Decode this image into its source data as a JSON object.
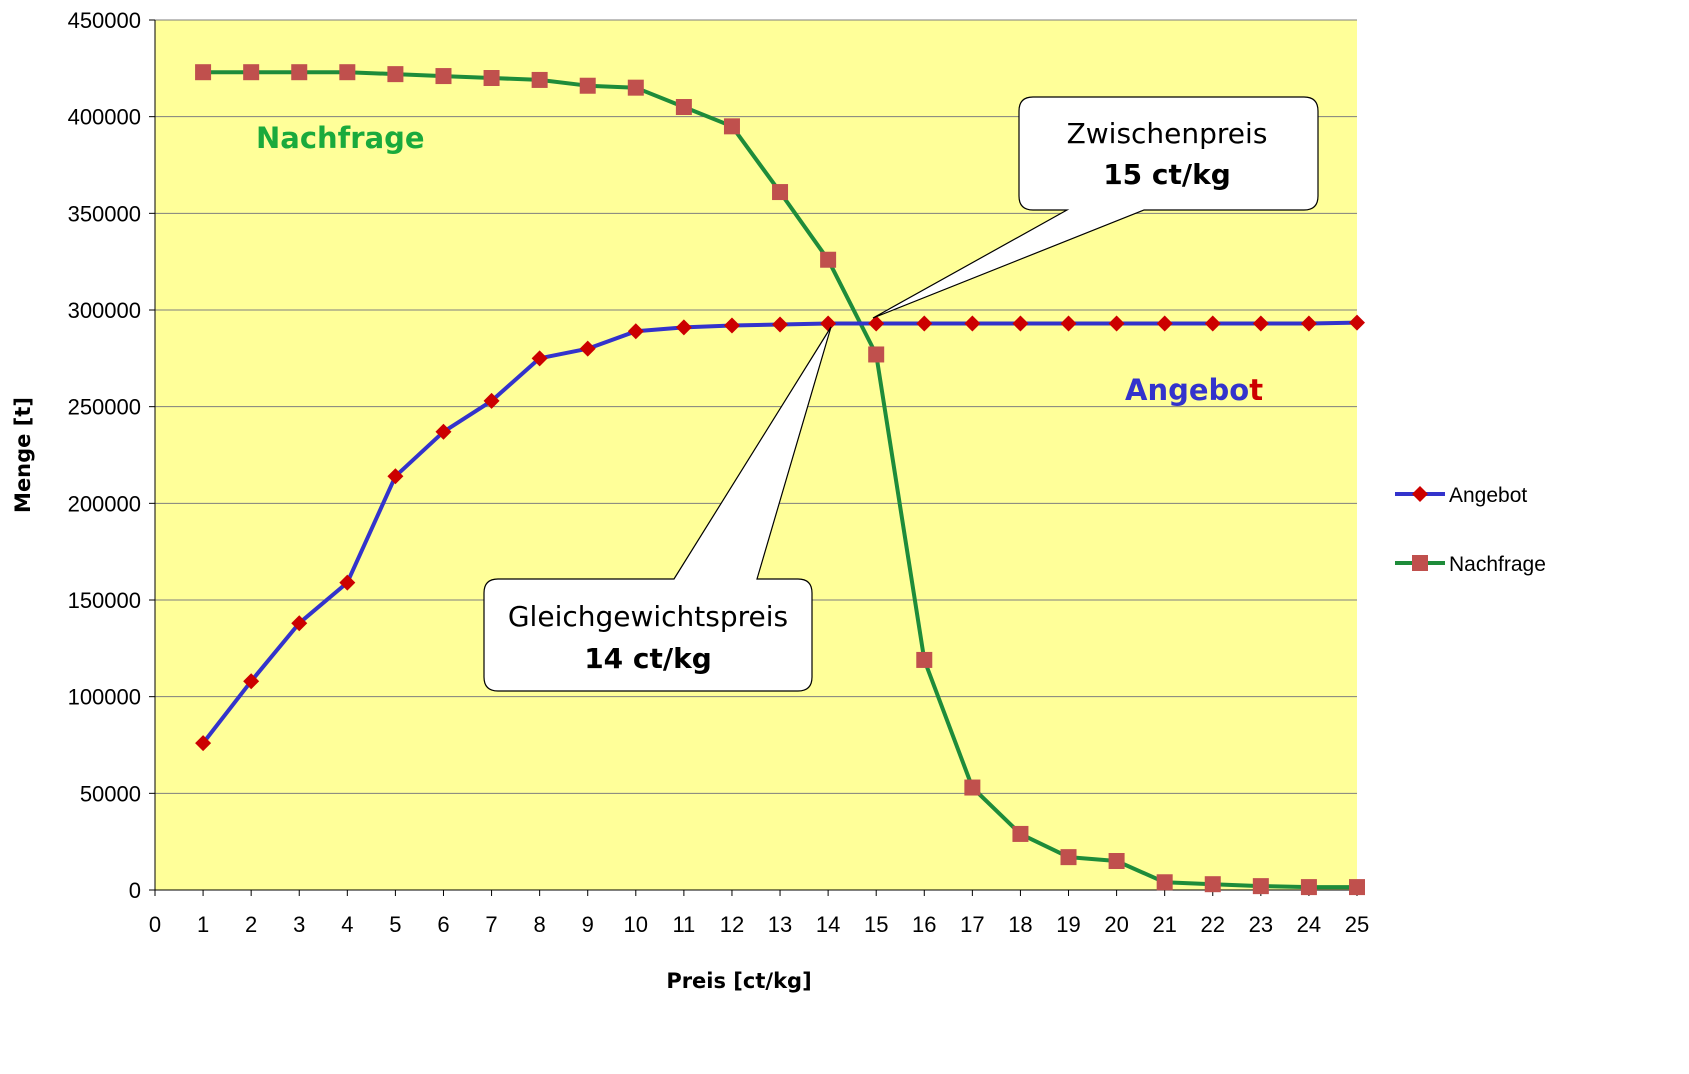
{
  "chart_data": {
    "type": "line",
    "title": "",
    "xlabel": "Preis [ct/kg]",
    "ylabel": "Menge [t]",
    "xlim": [
      0,
      25
    ],
    "ylim": [
      0,
      450000
    ],
    "x_ticks": [
      "0",
      "1",
      "2",
      "3",
      "4",
      "5",
      "6",
      "7",
      "8",
      "9",
      "10",
      "11",
      "12",
      "13",
      "14",
      "15",
      "16",
      "17",
      "18",
      "19",
      "20",
      "21",
      "22",
      "23",
      "24",
      "25"
    ],
    "y_ticks": [
      "0",
      "50000",
      "100000",
      "150000",
      "200000",
      "250000",
      "300000",
      "350000",
      "400000",
      "450000"
    ],
    "grid": "horizontal",
    "background": "#ffff99",
    "legend_position": "right",
    "x": [
      1,
      2,
      3,
      4,
      5,
      6,
      7,
      8,
      9,
      10,
      11,
      12,
      13,
      14,
      15,
      16,
      17,
      18,
      19,
      20,
      21,
      22,
      23,
      24,
      25
    ],
    "series": [
      {
        "name": "Angebot",
        "line_color": "#3333cc",
        "marker": "diamond",
        "marker_color": "#cc0000",
        "values": [
          76000,
          108000,
          138000,
          159000,
          214000,
          237000,
          253000,
          275000,
          280000,
          289000,
          291000,
          292000,
          292500,
          293000,
          293000,
          293000,
          293000,
          293000,
          293000,
          293000,
          293000,
          293000,
          293000,
          293000,
          293500
        ]
      },
      {
        "name": "Nachfrage",
        "line_color": "#1e8c3a",
        "marker": "square",
        "marker_color": "#c0504d",
        "values": [
          423000,
          423000,
          423000,
          423000,
          422000,
          421000,
          420000,
          419000,
          416000,
          415000,
          405000,
          395000,
          361000,
          326000,
          277000,
          119000,
          53000,
          29000,
          17000,
          15000,
          4000,
          3000,
          2000,
          1500,
          1500
        ]
      }
    ],
    "annotations": {
      "nachfrage_label": "Nachfrage",
      "angebot_label_main": "Angebo",
      "angebot_label_last": "t",
      "callout_zwischen": {
        "line1": "Zwischenpreis",
        "line2": "15 ct/kg"
      },
      "callout_gleich": {
        "line1": "Gleichgewichtspreis",
        "line2": "14 ct/kg"
      }
    },
    "colors": {
      "nachfrage_text": "#1aaa3c",
      "angebot_text": "#3333cc",
      "angebot_t_text": "#cc0000"
    }
  }
}
